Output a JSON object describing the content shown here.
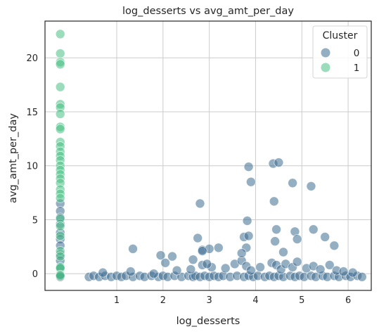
{
  "chart_data": {
    "type": "scatter",
    "title": "log_desserts vs avg_amt_per_day",
    "xlabel": "log_desserts",
    "ylabel": "avg_amt_per_day",
    "xlim": [
      -0.55,
      6.5
    ],
    "ylim": [
      -1.55,
      23.4
    ],
    "xticks": [
      1,
      2,
      3,
      4,
      5,
      6
    ],
    "yticks": [
      0,
      5,
      10,
      15,
      20
    ],
    "grid": true,
    "legend": {
      "title": "Cluster",
      "placement": "top-right",
      "entries": [
        "0",
        "1"
      ]
    },
    "colors": {
      "0": "#3d6b8f",
      "1": "#47bf83"
    },
    "series": [
      {
        "name": "0",
        "x": [
          -0.22,
          -0.22,
          -0.22,
          -0.22,
          -0.22,
          -0.22,
          -0.22,
          -0.22,
          -0.22,
          -0.22,
          -0.22,
          -0.22,
          0.4,
          0.5,
          0.62,
          0.75,
          0.88,
          1.0,
          1.1,
          1.2,
          1.35,
          1.5,
          1.6,
          1.75,
          1.9,
          2.0,
          2.1,
          2.25,
          2.4,
          2.55,
          2.65,
          2.7,
          2.8,
          2.9,
          3.0,
          3.1,
          3.2,
          3.3,
          3.45,
          3.6,
          3.75,
          3.85,
          3.95,
          4.05,
          4.2,
          4.3,
          4.4,
          4.5,
          4.6,
          4.75,
          4.85,
          4.95,
          5.05,
          5.2,
          5.3,
          5.45,
          5.55,
          5.7,
          5.8,
          5.95,
          6.05,
          6.2,
          6.3,
          0.7,
          1.3,
          1.8,
          2.3,
          2.6,
          2.85,
          3.05,
          3.35,
          3.55,
          3.7,
          3.8,
          3.9,
          4.1,
          4.35,
          4.45,
          4.55,
          4.65,
          4.8,
          4.9,
          5.1,
          5.25,
          5.4,
          5.6,
          5.75,
          5.9,
          6.1,
          2.8,
          2.85,
          3.0,
          3.2,
          3.75,
          3.82,
          3.85,
          3.9,
          4.38,
          4.4,
          4.45,
          4.5,
          4.8,
          4.85,
          5.2,
          5.25,
          5.7,
          5.5,
          4.9,
          3.8,
          3.7,
          1.35,
          2.2,
          2.75,
          2.85,
          2.95,
          1.95,
          2.05,
          2.65,
          3.85,
          4.42,
          4.6
        ],
        "y": [
          6.5,
          5.8,
          5.2,
          4.6,
          3.8,
          3.2,
          2.6,
          1.8,
          1.2,
          0.6,
          -0.1,
          -0.3,
          -0.3,
          -0.2,
          -0.3,
          -0.2,
          -0.3,
          -0.2,
          -0.3,
          -0.2,
          -0.3,
          -0.2,
          -0.3,
          -0.2,
          -0.3,
          -0.2,
          -0.3,
          -0.2,
          -0.3,
          -0.2,
          -0.3,
          -0.2,
          -0.3,
          -0.2,
          -0.3,
          -0.2,
          -0.3,
          -0.2,
          -0.3,
          -0.2,
          -0.3,
          -0.2,
          -0.3,
          -0.2,
          -0.3,
          -0.2,
          -0.3,
          -0.2,
          -0.3,
          -0.2,
          -0.3,
          -0.2,
          -0.3,
          -0.2,
          -0.3,
          -0.2,
          -0.3,
          -0.2,
          -0.3,
          -0.2,
          -0.3,
          -0.2,
          -0.3,
          0.1,
          0.2,
          0.0,
          0.3,
          0.4,
          0.8,
          0.6,
          0.5,
          0.9,
          1.2,
          0.7,
          0.3,
          0.6,
          1.0,
          0.8,
          0.4,
          0.9,
          0.6,
          1.1,
          0.5,
          0.7,
          0.4,
          0.8,
          0.3,
          0.2,
          0.1,
          6.5,
          2.2,
          2.3,
          2.4,
          3.4,
          4.9,
          9.9,
          8.5,
          10.2,
          6.7,
          4.1,
          10.3,
          8.4,
          3.9,
          8.1,
          4.1,
          2.6,
          3.4,
          3.2,
          2.4,
          1.9,
          2.3,
          1.6,
          3.3,
          2.1,
          0.9,
          1.7,
          1.0,
          1.3,
          3.5,
          3.0,
          2.0
        ]
      },
      {
        "name": "1",
        "x": [
          -0.22,
          -0.22,
          -0.22,
          -0.22,
          -0.22,
          -0.22,
          -0.22,
          -0.22,
          -0.22,
          -0.22,
          -0.22,
          -0.22,
          -0.22,
          -0.22,
          -0.22,
          -0.22,
          -0.22,
          -0.22,
          -0.22,
          -0.22,
          -0.22,
          -0.22,
          -0.22,
          -0.22,
          -0.22,
          -0.22,
          -0.22,
          -0.22,
          -0.22,
          -0.22,
          -0.22,
          -0.22
        ],
        "y": [
          22.2,
          20.4,
          19.6,
          19.4,
          17.3,
          15.7,
          15.4,
          14.8,
          13.6,
          13.4,
          12.2,
          11.8,
          11.3,
          10.9,
          10.5,
          10.0,
          9.6,
          9.2,
          8.8,
          8.4,
          7.8,
          7.4,
          7.0,
          5.1,
          4.4,
          3.5,
          2.1,
          1.6,
          0.6,
          0.5,
          -0.1,
          -0.2
        ]
      }
    ]
  }
}
